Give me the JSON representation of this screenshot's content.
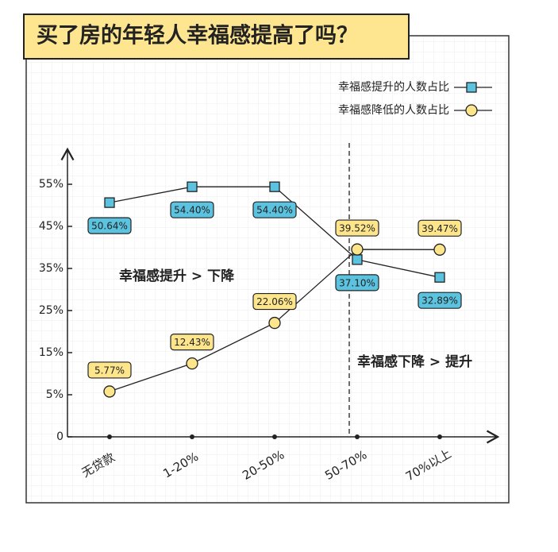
{
  "chart_data": {
    "type": "line",
    "title": "买了房的年轻人幸福感提高了吗？",
    "categories": [
      "无贷款",
      "1-20%",
      "20-50%",
      "50-70%",
      "70%以上"
    ],
    "series": [
      {
        "name": "幸福感提升的人数占比",
        "color": "#5bc3df",
        "marker": "square",
        "values": [
          50.64,
          54.4,
          54.4,
          37.1,
          32.89
        ],
        "value_labels": [
          "50.64%",
          "54.40%",
          "54.40%",
          "37.10%",
          "32.89%"
        ]
      },
      {
        "name": "幸福感降低的人数占比",
        "color": "#fde58c",
        "marker": "circle",
        "values": [
          5.77,
          12.43,
          22.06,
          39.52,
          39.47
        ],
        "value_labels": [
          "5.77%",
          "12.43%",
          "22.06%",
          "39.52%",
          "39.47%"
        ]
      }
    ],
    "yticks": [
      0,
      {
        "value": 5,
        "label": "5%"
      },
      {
        "value": 15,
        "label": "15%"
      },
      {
        "value": 25,
        "label": "25%"
      },
      {
        "value": 35,
        "label": "35%"
      },
      {
        "value": 45,
        "label": "45%"
      },
      {
        "value": 55,
        "label": "55%"
      }
    ],
    "annotations": [
      "幸福感提升 > 下降",
      "幸福感下降 > 提升"
    ]
  }
}
